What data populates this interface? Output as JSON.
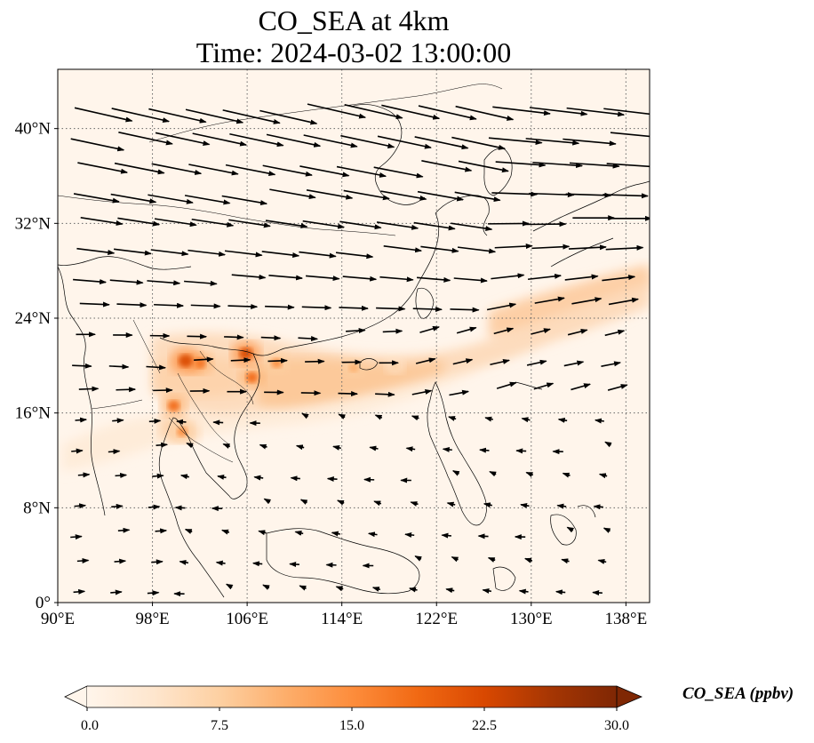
{
  "title": "CO_SEA at 4km",
  "subtitle": "Time: 2024-03-02 13:00:00",
  "map": {
    "lon_range": [
      90,
      140
    ],
    "lat_range": [
      0,
      45
    ],
    "lon_ticks": [
      {
        "value": 90,
        "label": "90°E"
      },
      {
        "value": 98,
        "label": "98°E"
      },
      {
        "value": 106,
        "label": "106°E"
      },
      {
        "value": 114,
        "label": "114°E"
      },
      {
        "value": 122,
        "label": "122°E"
      },
      {
        "value": 130,
        "label": "130°E"
      },
      {
        "value": 138,
        "label": "138°E"
      }
    ],
    "lat_ticks": [
      {
        "value": 0,
        "label": "0°"
      },
      {
        "value": 8,
        "label": "8°N"
      },
      {
        "value": 16,
        "label": "16°N"
      },
      {
        "value": 24,
        "label": "24°N"
      },
      {
        "value": 32,
        "label": "32°N"
      },
      {
        "value": 40,
        "label": "40°N"
      }
    ],
    "gridlines": true,
    "plume_hotspots": [
      {
        "lon": 105.9,
        "lat": 21.0,
        "value": 22
      },
      {
        "lon": 106.4,
        "lat": 19.0,
        "value": 18
      },
      {
        "lon": 108.5,
        "lat": 20.2,
        "value": 15
      },
      {
        "lon": 102.0,
        "lat": 20.2,
        "value": 17
      },
      {
        "lon": 100.8,
        "lat": 20.4,
        "value": 24
      },
      {
        "lon": 100.5,
        "lat": 14.4,
        "value": 14
      },
      {
        "lon": 99.8,
        "lat": 16.6,
        "value": 18
      },
      {
        "lon": 115.0,
        "lat": 19.8,
        "value": 11
      },
      {
        "lon": 118.5,
        "lat": 20.0,
        "value": 9
      }
    ]
  },
  "colorbar": {
    "label": "CO_SEA (ppbv)",
    "min": 0,
    "max": 30,
    "ticks": [
      "0.0",
      "7.5",
      "15.0",
      "22.5",
      "30.0"
    ],
    "colormap": [
      "#fff5eb",
      "#fee6ce",
      "#fdd0a2",
      "#fdae6b",
      "#fd8d3c",
      "#f16913",
      "#d94801",
      "#a63603",
      "#7f2704"
    ]
  }
}
